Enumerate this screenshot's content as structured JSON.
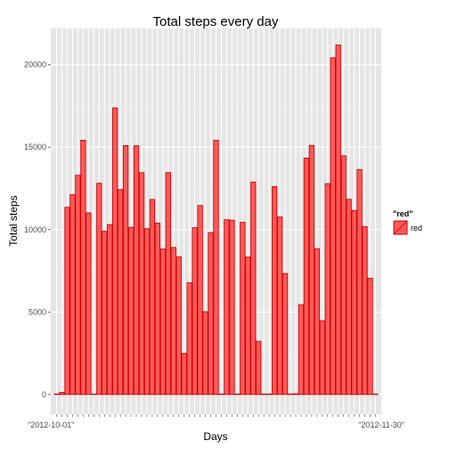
{
  "chart_data": {
    "type": "bar",
    "title": "Total steps every day",
    "xlabel": "Days",
    "ylabel": "Total steps",
    "ylim": [
      -1200,
      22200
    ],
    "yticks": [
      0,
      5000,
      10000,
      15000,
      20000
    ],
    "ytick_labels": [
      "0",
      "5000",
      "10000",
      "15000",
      "20000"
    ],
    "xtick_labels_visible": [
      "\"2012-10-01\"",
      "\"2012-11-30\""
    ],
    "fill_color": "#ff5a5a",
    "stroke_color": "#cc0000",
    "panel_color": "#e5e5e5",
    "grid": true,
    "legend": {
      "title": "\"red\"",
      "label": "red",
      "position": "right"
    },
    "series": [
      {
        "name": "red",
        "values": [
          0,
          126,
          11352,
          12116,
          13294,
          15420,
          11015,
          0,
          12811,
          9900,
          10304,
          17382,
          12426,
          15098,
          10139,
          15084,
          13452,
          10056,
          11829,
          10395,
          8821,
          13460,
          8918,
          8355,
          2492,
          6778,
          10119,
          11458,
          5018,
          9819,
          15414,
          0,
          10600,
          10571,
          0,
          10439,
          8334,
          12883,
          3219,
          0,
          0,
          12608,
          10765,
          7336,
          0,
          41,
          5441,
          14339,
          15110,
          8841,
          4472,
          12787,
          20427,
          21194,
          14478,
          11834,
          11162,
          13646,
          10183,
          7047,
          0
        ]
      }
    ]
  }
}
